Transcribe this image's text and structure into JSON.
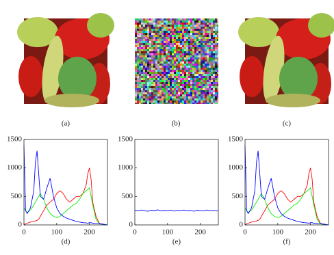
{
  "images": [
    {
      "caption": "(a)"
    },
    {
      "caption": "(b)"
    },
    {
      "caption": "(c)"
    }
  ],
  "chart_data": [
    {
      "type": "line",
      "caption": "(d)",
      "x": [
        0,
        5,
        10,
        20,
        30,
        35,
        40,
        45,
        50,
        60,
        70,
        80,
        90,
        100,
        110,
        120,
        130,
        140,
        150,
        160,
        170,
        180,
        190,
        195,
        200,
        205,
        210,
        220,
        230,
        240,
        250,
        255
      ],
      "series": [
        {
          "color": "#ff0000",
          "values": [
            0,
            20,
            30,
            50,
            60,
            70,
            80,
            100,
            150,
            250,
            350,
            400,
            450,
            550,
            600,
            550,
            450,
            400,
            450,
            500,
            500,
            550,
            700,
            900,
            1000,
            800,
            400,
            150,
            30,
            5,
            0,
            0
          ]
        },
        {
          "color": "#00ee00",
          "values": [
            300,
            250,
            220,
            260,
            350,
            400,
            450,
            500,
            550,
            450,
            300,
            200,
            150,
            130,
            150,
            200,
            250,
            300,
            350,
            380,
            450,
            550,
            600,
            620,
            650,
            500,
            350,
            100,
            20,
            5,
            0,
            0
          ]
        },
        {
          "color": "#0000ff",
          "values": [
            1400,
            250,
            200,
            300,
            600,
            1100,
            1300,
            900,
            500,
            450,
            650,
            820,
            500,
            300,
            200,
            150,
            120,
            100,
            80,
            60,
            50,
            40,
            35,
            30,
            40,
            40,
            30,
            25,
            20,
            15,
            5,
            0
          ]
        }
      ],
      "xlim": [
        0,
        255
      ],
      "ylim": [
        0,
        1500
      ],
      "xticks": [
        0,
        100,
        200
      ],
      "yticks": [
        0,
        500,
        1000,
        1500
      ]
    },
    {
      "type": "line",
      "caption": "(e)",
      "x": [
        0,
        10,
        20,
        30,
        40,
        50,
        60,
        70,
        80,
        90,
        100,
        110,
        120,
        130,
        140,
        150,
        160,
        170,
        180,
        190,
        200,
        210,
        220,
        230,
        240,
        250,
        255
      ],
      "series": [
        {
          "color": "#0000ff",
          "values": [
            255,
            248,
            262,
            250,
            240,
            258,
            252,
            265,
            245,
            255,
            250,
            260,
            243,
            257,
            251,
            262,
            248,
            255,
            240,
            258,
            253,
            247,
            262,
            250,
            256,
            244,
            255
          ]
        }
      ],
      "xlim": [
        0,
        255
      ],
      "ylim": [
        0,
        1500
      ],
      "xticks": [
        0,
        100,
        200
      ],
      "yticks": [
        0,
        500,
        1000,
        1500
      ]
    },
    {
      "type": "line",
      "caption": "(f)",
      "x": [
        0,
        5,
        10,
        20,
        30,
        35,
        40,
        45,
        50,
        60,
        70,
        80,
        90,
        100,
        110,
        120,
        130,
        140,
        150,
        160,
        170,
        180,
        190,
        195,
        200,
        205,
        210,
        220,
        230,
        240,
        250,
        255
      ],
      "series": [
        {
          "color": "#ff0000",
          "values": [
            0,
            20,
            30,
            50,
            60,
            70,
            80,
            100,
            150,
            250,
            350,
            400,
            450,
            550,
            600,
            550,
            450,
            400,
            450,
            500,
            500,
            550,
            700,
            900,
            1000,
            800,
            400,
            150,
            30,
            5,
            0,
            0
          ]
        },
        {
          "color": "#00ee00",
          "values": [
            300,
            250,
            220,
            260,
            350,
            400,
            450,
            500,
            550,
            450,
            300,
            200,
            150,
            130,
            150,
            200,
            250,
            300,
            350,
            380,
            450,
            550,
            600,
            620,
            650,
            500,
            350,
            100,
            20,
            5,
            0,
            0
          ]
        },
        {
          "color": "#0000ff",
          "values": [
            1400,
            250,
            200,
            300,
            600,
            1100,
            1300,
            900,
            500,
            450,
            650,
            820,
            500,
            300,
            200,
            150,
            120,
            100,
            80,
            60,
            50,
            40,
            35,
            30,
            40,
            40,
            30,
            25,
            20,
            15,
            5,
            0
          ]
        }
      ],
      "xlim": [
        0,
        255
      ],
      "ylim": [
        0,
        1500
      ],
      "xticks": [
        0,
        100,
        200
      ],
      "yticks": [
        0,
        500,
        1000,
        1500
      ]
    }
  ]
}
